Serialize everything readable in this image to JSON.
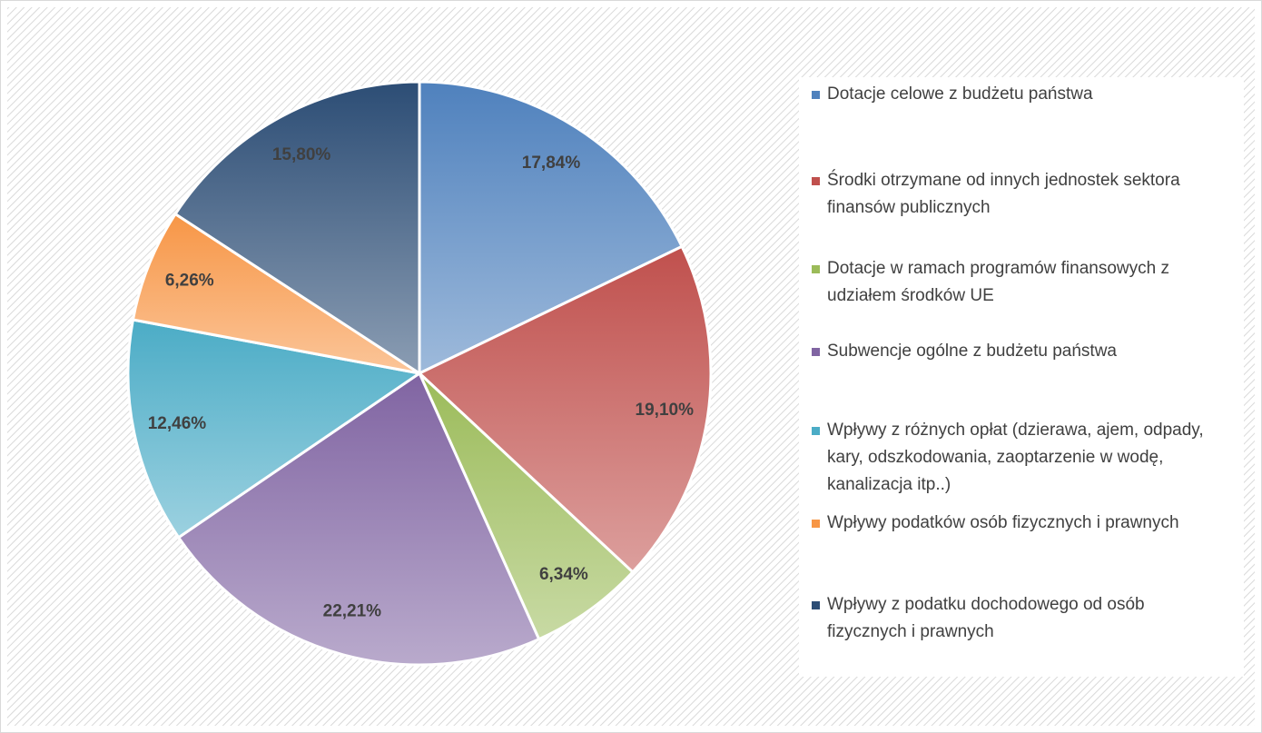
{
  "chart_data": {
    "type": "pie",
    "categories": [
      "Dotacje celowe z budżetu państwa",
      "Środki otrzymane od innych jednostek sektora finansów publicznych",
      "Dotacje w ramach programów finansowych z udziałem środków UE",
      "Subwencje ogólne z budżetu państwa",
      "Wpływy z różnych opłat (dzierawa, ajem, odpady, kary, odszkodowania, zaoptarzenie w wodę, kanalizacja itp..)",
      "Wpływy podatków osób fizycznych i prawnych",
      "Wpływy z podatku dochodowego od osób fizycznych i prawnych"
    ],
    "values": [
      17.84,
      19.1,
      6.34,
      22.21,
      12.46,
      6.26,
      15.8
    ],
    "value_labels": [
      "17,84%",
      "19,10%",
      "6,34%",
      "22,21%",
      "12,46%",
      "6,26%",
      "15,80%"
    ],
    "colors": [
      "#4f81bd",
      "#c0504d",
      "#9bbb59",
      "#8064a2",
      "#4bacc6",
      "#f79646",
      "#2c4d75"
    ],
    "legend": "right"
  }
}
